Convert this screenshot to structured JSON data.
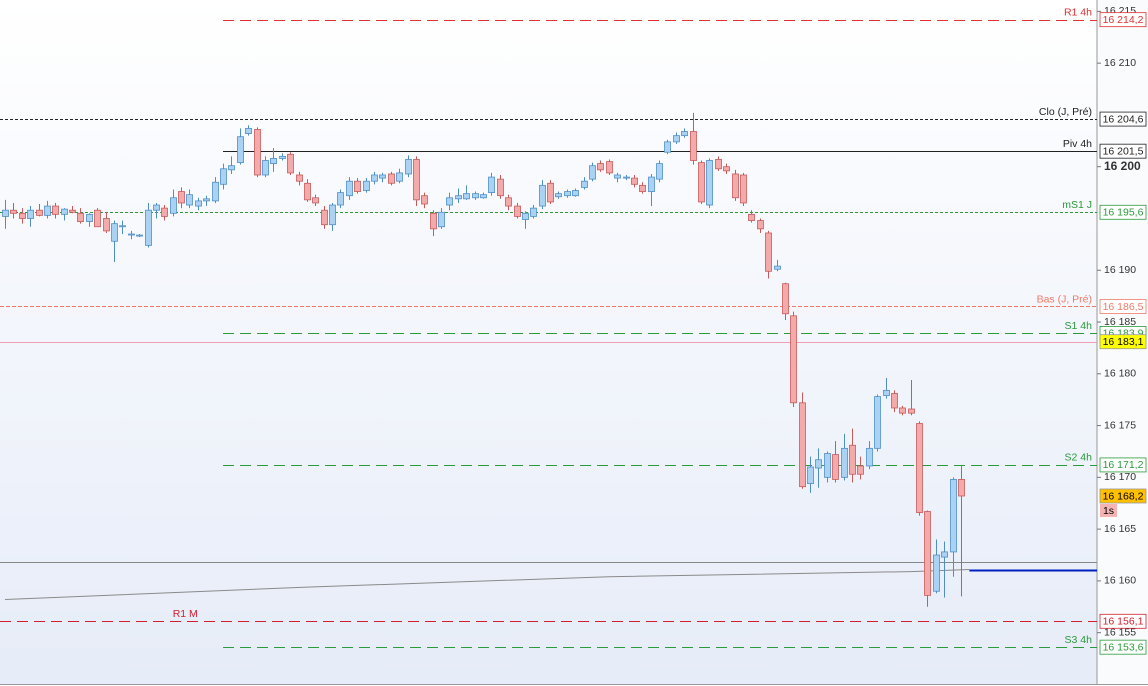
{
  "chart_data": {
    "type": "candlestick",
    "up_color": "#a9d2f3",
    "up_edge": "#4f8fc9",
    "down_color": "#f4aaaa",
    "down_edge": "#c85a5a",
    "ylim": [
      16149.85,
      16216.1
    ],
    "yticks": [
      {
        "value": 16215,
        "label": "16 215"
      },
      {
        "value": 16210,
        "label": "16 210"
      },
      {
        "value": 16200,
        "label": "16 200",
        "bold": true
      },
      {
        "value": 16190,
        "label": "16 190"
      },
      {
        "value": 16185,
        "label": "16 185"
      },
      {
        "value": 16180,
        "label": "16 180"
      },
      {
        "value": 16175,
        "label": "16 175"
      },
      {
        "value": 16170,
        "label": "16 170"
      },
      {
        "value": 16165,
        "label": "16 165"
      },
      {
        "value": 16160,
        "label": "16 160"
      },
      {
        "value": 16155,
        "label": "16 155"
      }
    ],
    "open": [
      16195.2,
      16195.8,
      16195.5,
      16195,
      16195.8,
      16195.3,
      16196.2,
      16195.4,
      16195.8,
      16195.5,
      16194.7,
      16195.8,
      16195,
      16192.8,
      16194.2,
      16193.4,
      16193.3,
      16192.4,
      16195.8,
      16196,
      16195.5,
      16197.6,
      16196.3,
      16196.2,
      16196.7,
      16196.7,
      16198.3,
      16199.7,
      16200.4,
      16203.2,
      16203.6,
      16199.2,
      16200.3,
      16200.8,
      16201.2,
      16199.2,
      16198.4,
      16197,
      16195.8,
      16194.4,
      16196.3,
      16197.2,
      16198.6,
      16197.7,
      16198.6,
      16198.9,
      16199.3,
      16198.6,
      16199.3,
      16200.7,
      16197.2,
      16195.5,
      16194.2,
      16196.3,
      16196.9,
      16196.9,
      16197,
      16197,
      16197.5,
      16198.8,
      16197,
      16196.2,
      16194.9,
      16195.2,
      16196.2,
      16198.4,
      16197.1,
      16197.2,
      16197.2,
      16198,
      16198.8,
      16200.3,
      16200.5,
      16198.9,
      16198.9,
      16198.9,
      16198.2,
      16197.6,
      16198.8,
      16201.4,
      16202.4,
      16203,
      16203.4,
      16200.4,
      16196.3,
      16200.7,
      16200,
      16199.3,
      16199.2,
      16195.4,
      16194.8,
      16193.6,
      16190.1,
      16188.7,
      16185.6,
      16177.2,
      16169.4,
      16170.9,
      16170,
      16172.2,
      16170,
      16173.1,
      16171.1,
      16171.1,
      16172.8,
      16177.9,
      16178.1,
      16176.7,
      16176.6,
      16175.2,
      16166.7,
      16159,
      16162.3,
      16162.8,
      16169.8
    ],
    "high": [
      16196.8,
      16196.5,
      16196,
      16196.2,
      16196.4,
      16196.7,
      16196.5,
      16196,
      16196.2,
      16196,
      16195.5,
      16196,
      16195.6,
      16194.8,
      16194.8,
      16193.8,
      16193.5,
      16196.5,
      16196.5,
      16196.3,
      16197.8,
      16198,
      16197.8,
      16197,
      16197.2,
      16199,
      16200.3,
      16201,
      16203.7,
      16204,
      16203.8,
      16201,
      16201.8,
      16201.3,
      16201.4,
      16199.5,
      16198.8,
      16197.3,
      16196.2,
      16196.5,
      16197.8,
      16199,
      16198.9,
      16198.9,
      16199.5,
      16199.4,
      16199.5,
      16199.8,
      16201.1,
      16201,
      16197.5,
      16195.8,
      16196,
      16197.5,
      16197.9,
      16198.2,
      16197.6,
      16197.5,
      16199.4,
      16199.2,
      16197.3,
      16196.5,
      16195.7,
      16196.3,
      16198.7,
      16198.7,
      16197.6,
      16197.8,
      16197.9,
      16199,
      16200.4,
      16200.6,
      16200.7,
      16199.4,
      16199.2,
      16199.2,
      16198.5,
      16199.3,
      16200.6,
      16202.6,
      16203.3,
      16203.7,
      16205.2,
      16200.6,
      16200.8,
      16201,
      16200.3,
      16199.7,
      16199.4,
      16195.8,
      16195,
      16193.8,
      16191,
      16188.8,
      16186,
      16178.2,
      16172,
      16172.8,
      16172.5,
      16173.5,
      16174.2,
      16174.7,
      16172,
      16173.5,
      16178,
      16179.6,
      16178.4,
      16176.9,
      16179.4,
      16175.4,
      16166.8,
      16164,
      16163.8,
      16170,
      16171.2
    ],
    "low": [
      16194,
      16195,
      16194.5,
      16194.2,
      16195.2,
      16195,
      16195,
      16194.8,
      16195.5,
      16194.5,
      16194.2,
      16194.2,
      16193.6,
      16190.8,
      16193.5,
      16193,
      16193.2,
      16192.2,
      16195,
      16194.8,
      16195.2,
      16196,
      16196,
      16195.8,
      16196.2,
      16196.5,
      16197.8,
      16199.3,
      16200.2,
      16203,
      16199,
      16199,
      16199.5,
      16200.6,
      16199.2,
      16198.2,
      16196.6,
      16196.2,
      16194,
      16193.8,
      16196,
      16196.8,
      16197.4,
      16197.5,
      16198.3,
      16198.5,
      16198.2,
      16198.4,
      16199,
      16196.2,
      16196,
      16193.3,
      16194,
      16195.8,
      16196.5,
      16196.8,
      16196.8,
      16196.9,
      16197.2,
      16196.9,
      16195.8,
      16195,
      16194,
      16195,
      16195.9,
      16196.4,
      16196.9,
      16197,
      16197.1,
      16197.8,
      16198.6,
      16199.5,
      16199.2,
      16198.5,
      16198.7,
      16198,
      16197.4,
      16196.2,
      16198.5,
      16201.2,
      16202.2,
      16202.8,
      16200.2,
      16196.4,
      16196,
      16199.6,
      16199.3,
      16196.7,
      16196.2,
      16194.6,
      16193.6,
      16189.2,
      16189.9,
      16185.2,
      16176.8,
      16168.9,
      16168.5,
      16169,
      16169.5,
      16169.5,
      16169.7,
      16169.5,
      16169.8,
      16170.8,
      16172.5,
      16177.6,
      16176.3,
      16176,
      16176,
      16166.3,
      16157.5,
      16158.8,
      16158.4,
      16160.4,
      16158.5
    ],
    "close": [
      16195.8,
      16195.5,
      16195,
      16195.8,
      16195.3,
      16196.2,
      16195.4,
      16195.9,
      16195.6,
      16194.7,
      16195.4,
      16194.2,
      16193.8,
      16194.5,
      16194.3,
      16193.5,
      16193.4,
      16195.8,
      16196.3,
      16195.2,
      16197,
      16196.5,
      16197.3,
      16196.7,
      16196.9,
      16198.5,
      16199.8,
      16200.1,
      16202.9,
      16203.7,
      16199.2,
      16200.6,
      16200.8,
      16201,
      16199.4,
      16198.6,
      16196.8,
      16196.5,
      16194.4,
      16196.3,
      16197.5,
      16198.6,
      16197.6,
      16198.6,
      16199.2,
      16199.2,
      16198.4,
      16199.4,
      16200.7,
      16196.8,
      16196.4,
      16194,
      16195.6,
      16197,
      16197.2,
      16197.4,
      16197.4,
      16197.3,
      16199,
      16197.2,
      16196.2,
      16195.2,
      16195.5,
      16196,
      16198.2,
      16196.6,
      16197.4,
      16197.6,
      16197.7,
      16198.6,
      16200.1,
      16199.7,
      16199.4,
      16199.2,
      16199,
      16198.3,
      16197.6,
      16199,
      16200.3,
      16202.4,
      16203,
      16203.4,
      16200.6,
      16196.6,
      16200.6,
      16199.8,
      16199.6,
      16197,
      16196.5,
      16194.8,
      16194,
      16189.9,
      16190.4,
      16185.8,
      16177.2,
      16169.1,
      16171,
      16171.7,
      16172.3,
      16169.8,
      16172.8,
      16170.3,
      16170.3,
      16172.8,
      16177.8,
      16178.4,
      16176.7,
      16176.2,
      16176.2,
      16166.6,
      16158.6,
      16162.5,
      16162.8,
      16169.8,
      16168.2
    ],
    "moving_average": {
      "color": "#8a8a8a",
      "x": [
        0,
        36,
        72,
        108,
        115
      ],
      "values": [
        16158.2,
        16159.4,
        16160.4,
        16160.9,
        16161.1
      ]
    },
    "levels": [
      {
        "label": "R1 4h",
        "value": 16214.2,
        "value_label": "16 214,2",
        "color": "#e03030",
        "style": "dashed",
        "start": 26
      },
      {
        "label": "Clo (J, Pré)",
        "value": 16204.6,
        "value_label": "16 204,6",
        "color": "#222222",
        "style": "dotted"
      },
      {
        "label": "Piv 4h",
        "value": 16201.5,
        "value_label": "16 201,5",
        "color": "#222222",
        "style": "solid",
        "start": 26
      },
      {
        "label": "mS1 J",
        "value": 16195.6,
        "value_label": "16 195,6",
        "color": "#2a9a3a",
        "style": "dotted"
      },
      {
        "label": "Bas (J, Pré)",
        "value": 16186.5,
        "value_label": "16 186,5",
        "color": "#f07a68",
        "style": "fine"
      },
      {
        "label": "S1 4h",
        "value": 16183.9,
        "value_label": "16 183,9",
        "color": "#2a9a3a",
        "style": "dashed",
        "start": 26
      },
      {
        "value": 16183.1,
        "value_label": "16 183,1",
        "color": "#f0a0b0",
        "style": "solid",
        "box": "#ffff00"
      },
      {
        "label": "S2 4h",
        "value": 16171.2,
        "value_label": "16 171,2",
        "color": "#2a9a3a",
        "style": "dashed",
        "start": 26
      },
      {
        "value": 16168.2,
        "value_label": "16 168,2",
        "color": "#e8a000",
        "style": "none",
        "box": "#ffc000",
        "countdown": "1s"
      },
      {
        "value": 16161.8,
        "color": "#888888",
        "style": "solid"
      },
      {
        "value": 16161.1,
        "color": "#0020c0",
        "style": "thick",
        "start": 115
      },
      {
        "label": "R1 M",
        "value": 16156.1,
        "value_label": "16 156,1",
        "color": "#d02030",
        "style": "dashed",
        "label_index": 20
      },
      {
        "label": "S3 4h",
        "value": 16153.6,
        "value_label": "16 153,6",
        "color": "#2a9a3a",
        "style": "dashed",
        "start": 26
      }
    ]
  }
}
